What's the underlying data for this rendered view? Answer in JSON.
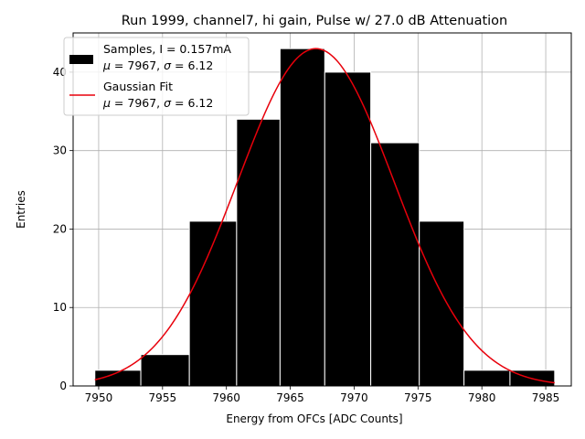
{
  "chart_data": {
    "type": "bar",
    "title": "Run 1999, channel7, hi gain, Pulse w/ 27.0 dB Attenuation",
    "xlabel": "Energy from OFCs [ADC Counts]",
    "ylabel": "Entries",
    "xlim": [
      7948,
      7987
    ],
    "ylim": [
      0,
      45
    ],
    "grid": true,
    "x_ticks": [
      7950,
      7955,
      7960,
      7965,
      7970,
      7975,
      7980,
      7985
    ],
    "y_ticks": [
      0,
      10,
      20,
      30,
      40
    ],
    "bins": [
      {
        "x0": 7949.7,
        "x1": 7953.3,
        "count": 2
      },
      {
        "x0": 7953.3,
        "x1": 7957.1,
        "count": 4
      },
      {
        "x0": 7957.1,
        "x1": 7960.8,
        "count": 21
      },
      {
        "x0": 7960.8,
        "x1": 7964.2,
        "count": 34
      },
      {
        "x0": 7964.2,
        "x1": 7967.7,
        "count": 43
      },
      {
        "x0": 7967.7,
        "x1": 7971.3,
        "count": 40
      },
      {
        "x0": 7971.3,
        "x1": 7975.1,
        "count": 31
      },
      {
        "x0": 7975.1,
        "x1": 7978.6,
        "count": 21
      },
      {
        "x0": 7978.6,
        "x1": 7982.2,
        "count": 2
      },
      {
        "x0": 7982.2,
        "x1": 7985.7,
        "count": 2
      }
    ],
    "fit": {
      "mu": 7967,
      "sigma": 6.12,
      "amplitude": 43,
      "x_range": [
        7949.7,
        7985.7
      ]
    },
    "series": [
      {
        "name": "Samples, I = 0.157mA",
        "stats": "μ = 7967, σ = 6.12",
        "color": "#000000",
        "type": "histogram"
      },
      {
        "name": "Gaussian Fit",
        "stats": "μ = 7967, σ = 6.12",
        "color": "#e8000b",
        "type": "line"
      }
    ],
    "legend": "top-left"
  }
}
